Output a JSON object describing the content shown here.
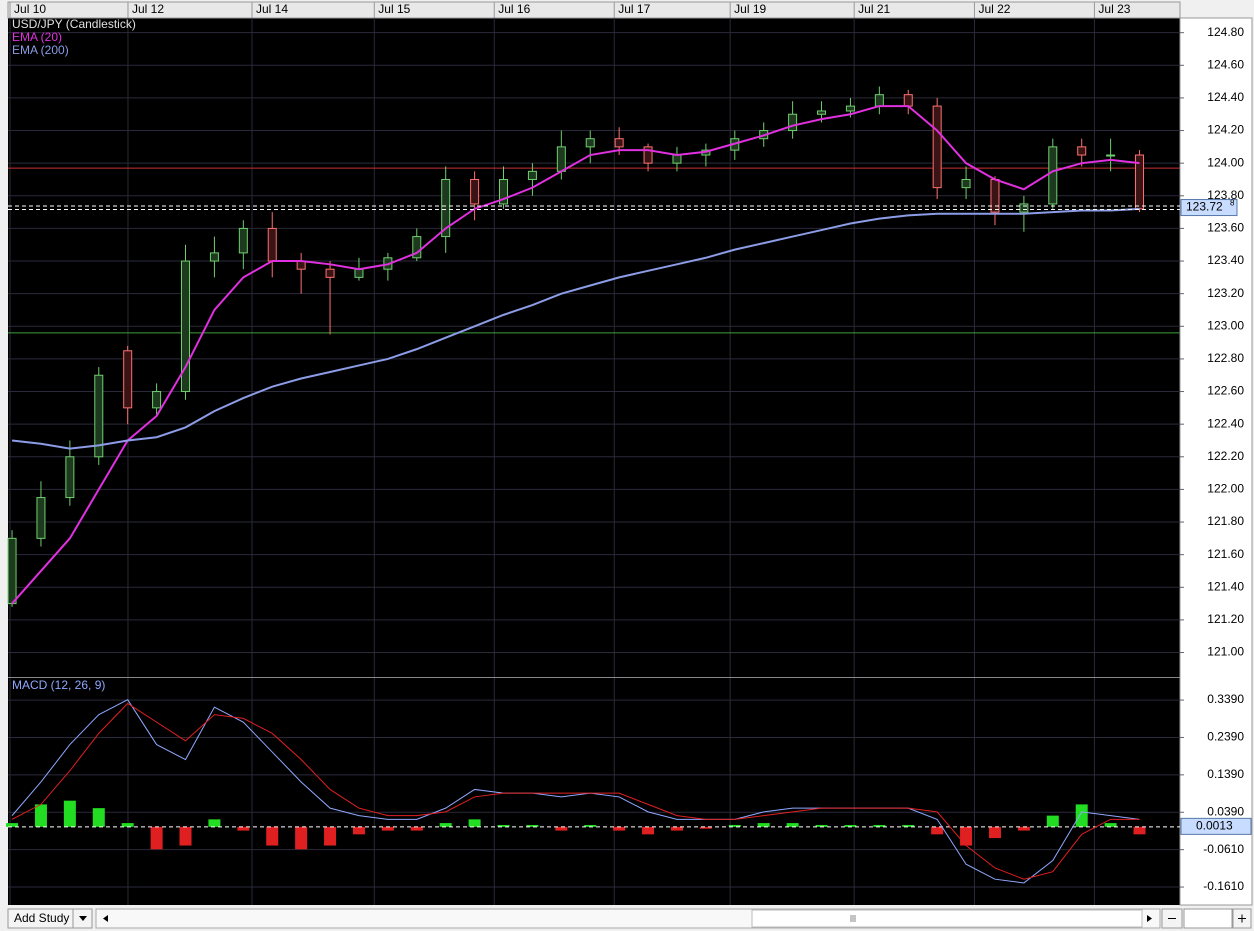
{
  "chart_data": [
    {
      "type": "candlestick",
      "title": "USD/JPY (Candlestick)",
      "xlim": [
        -0.14,
        40.4
      ],
      "xticks": [
        {
          "value": -0.07,
          "label": "Jul 10"
        },
        {
          "value": 4.01,
          "label": "Jul 12"
        },
        {
          "value": 8.3,
          "label": "Jul 14"
        },
        {
          "value": 12.53,
          "label": "Jul 15"
        },
        {
          "value": 16.68,
          "label": "Jul 16"
        },
        {
          "value": 20.83,
          "label": "Jul 17"
        },
        {
          "value": 24.84,
          "label": "Jul 19"
        },
        {
          "value": 29.13,
          "label": "Jul 21"
        },
        {
          "value": 33.29,
          "label": "Jul 22"
        },
        {
          "value": 37.44,
          "label": "Jul 23"
        }
      ],
      "ylim": [
        120.85,
        124.89
      ],
      "yticks": [
        {
          "value": 121.0,
          "label": "121.00"
        },
        {
          "value": 121.2,
          "label": "121.20"
        },
        {
          "value": 121.4,
          "label": "121.40"
        },
        {
          "value": 121.6,
          "label": "121.60"
        },
        {
          "value": 121.8,
          "label": "121.80"
        },
        {
          "value": 122.0,
          "label": "122.00"
        },
        {
          "value": 122.2,
          "label": "122.20"
        },
        {
          "value": 122.4,
          "label": "122.40"
        },
        {
          "value": 122.6,
          "label": "122.60"
        },
        {
          "value": 122.8,
          "label": "122.80"
        },
        {
          "value": 123.0,
          "label": "123.00"
        },
        {
          "value": 123.2,
          "label": "123.20"
        },
        {
          "value": 123.4,
          "label": "123.40"
        },
        {
          "value": 123.6,
          "label": "123.60"
        },
        {
          "value": 123.8,
          "label": "123.80"
        },
        {
          "value": 124.0,
          "label": "124.00"
        },
        {
          "value": 124.2,
          "label": "124.20"
        },
        {
          "value": 124.4,
          "label": "124.40"
        },
        {
          "value": 124.6,
          "label": "124.60"
        },
        {
          "value": 124.8,
          "label": "124.80"
        }
      ],
      "grid": true,
      "up_color": "#6fcf6f",
      "down_color": "#ff7070",
      "open": [
        121.3,
        121.7,
        121.95,
        122.2,
        122.85,
        122.5,
        122.6,
        123.4,
        123.45,
        123.6,
        123.4,
        123.35,
        123.3,
        123.35,
        123.42,
        123.55,
        123.9,
        123.75,
        123.9,
        123.95,
        124.1,
        124.15,
        124.1,
        124.0,
        124.05,
        124.08,
        124.15,
        124.2,
        124.3,
        124.32,
        124.35,
        124.42,
        124.35,
        123.85,
        123.9,
        123.7,
        123.75,
        124.1,
        124.05,
        124.05
      ],
      "high": [
        121.75,
        122.05,
        122.3,
        122.75,
        122.88,
        122.65,
        123.5,
        123.55,
        123.65,
        123.7,
        123.45,
        123.4,
        123.42,
        123.45,
        123.6,
        123.98,
        123.95,
        123.98,
        124.0,
        124.2,
        124.2,
        124.22,
        124.12,
        124.1,
        124.12,
        124.2,
        124.25,
        124.38,
        124.38,
        124.4,
        124.47,
        124.45,
        124.4,
        123.98,
        123.92,
        123.8,
        124.15,
        124.15,
        124.15,
        124.08
      ],
      "low": [
        121.28,
        121.65,
        121.9,
        122.15,
        122.4,
        122.45,
        122.55,
        123.3,
        123.35,
        123.3,
        123.2,
        122.95,
        123.28,
        123.28,
        123.4,
        123.45,
        123.65,
        123.72,
        123.8,
        123.9,
        124.0,
        124.05,
        123.95,
        123.95,
        123.98,
        124.02,
        124.1,
        124.15,
        124.25,
        124.28,
        124.3,
        124.3,
        123.78,
        123.78,
        123.62,
        123.58,
        123.72,
        123.98,
        123.95,
        123.7
      ],
      "close": [
        121.7,
        121.95,
        122.2,
        122.7,
        122.5,
        122.6,
        123.4,
        123.45,
        123.6,
        123.4,
        123.35,
        123.3,
        123.35,
        123.42,
        123.55,
        123.9,
        123.75,
        123.9,
        123.95,
        124.1,
        124.15,
        124.1,
        124.0,
        124.05,
        124.08,
        124.15,
        124.2,
        124.3,
        124.32,
        124.35,
        124.42,
        124.35,
        123.85,
        123.9,
        123.7,
        123.75,
        124.1,
        124.05,
        124.05,
        123.72
      ],
      "series": [
        {
          "name": "EMA (20)",
          "color": "#e030e0",
          "values": [
            121.3,
            121.5,
            121.7,
            122.0,
            122.3,
            122.45,
            122.75,
            123.1,
            123.3,
            123.4,
            123.4,
            123.38,
            123.35,
            123.38,
            123.45,
            123.6,
            123.72,
            123.78,
            123.85,
            123.95,
            124.05,
            124.08,
            124.08,
            124.05,
            124.07,
            124.12,
            124.17,
            124.23,
            124.27,
            124.3,
            124.35,
            124.35,
            124.2,
            124.0,
            123.9,
            123.84,
            123.95,
            124.0,
            124.02,
            124.0
          ]
        },
        {
          "name": "EMA (200)",
          "color": "#8c9ce6",
          "values": [
            122.3,
            122.28,
            122.25,
            122.27,
            122.3,
            122.32,
            122.38,
            122.48,
            122.56,
            122.63,
            122.68,
            122.72,
            122.76,
            122.8,
            122.86,
            122.93,
            123.0,
            123.07,
            123.13,
            123.2,
            123.25,
            123.3,
            123.34,
            123.38,
            123.42,
            123.47,
            123.51,
            123.55,
            123.59,
            123.63,
            123.66,
            123.68,
            123.69,
            123.69,
            123.69,
            123.69,
            123.7,
            123.71,
            123.71,
            123.72
          ]
        }
      ],
      "reference_lines": [
        {
          "value": 123.97,
          "color": "#c83232"
        },
        {
          "value": 122.96,
          "color": "#3ca03c"
        }
      ],
      "last_price": {
        "value": 123.728,
        "label": "123.72",
        "fraction": "8"
      }
    },
    {
      "type": "macd",
      "title": "MACD (12, 26, 9)",
      "xlim": [
        -0.14,
        40.4
      ],
      "ylim": [
        -0.209,
        0.398
      ],
      "yticks": [
        {
          "value": -0.161,
          "label": "-0.1610"
        },
        {
          "value": -0.061,
          "label": "-0.0610"
        },
        {
          "value": 0.039,
          "label": "0.0390"
        },
        {
          "value": 0.139,
          "label": "0.1390"
        },
        {
          "value": 0.239,
          "label": "0.2390"
        },
        {
          "value": 0.339,
          "label": "0.3390"
        }
      ],
      "grid": true,
      "series": [
        {
          "color": "#8fa8ff",
          "values": [
            0.03,
            0.12,
            0.22,
            0.3,
            0.34,
            0.22,
            0.18,
            0.32,
            0.28,
            0.2,
            0.12,
            0.05,
            0.03,
            0.02,
            0.02,
            0.05,
            0.1,
            0.09,
            0.09,
            0.08,
            0.09,
            0.08,
            0.04,
            0.02,
            0.02,
            0.02,
            0.04,
            0.05,
            0.05,
            0.05,
            0.05,
            0.05,
            0.02,
            -0.1,
            -0.14,
            -0.15,
            -0.09,
            0.04,
            0.03,
            0.02
          ]
        },
        {
          "color": "#e02020",
          "values": [
            0.02,
            0.06,
            0.15,
            0.25,
            0.33,
            0.28,
            0.23,
            0.3,
            0.29,
            0.25,
            0.18,
            0.1,
            0.05,
            0.03,
            0.03,
            0.04,
            0.08,
            0.09,
            0.09,
            0.09,
            0.09,
            0.09,
            0.06,
            0.03,
            0.02,
            0.02,
            0.03,
            0.04,
            0.05,
            0.05,
            0.05,
            0.05,
            0.04,
            -0.05,
            -0.11,
            -0.14,
            -0.12,
            -0.02,
            0.02,
            0.02
          ]
        }
      ],
      "histogram": {
        "up_color": "#22dd22",
        "down_color": "#e02020",
        "values": [
          0.01,
          0.06,
          0.07,
          0.05,
          0.01,
          -0.06,
          -0.05,
          0.02,
          -0.01,
          -0.05,
          -0.06,
          -0.05,
          -0.02,
          -0.01,
          -0.01,
          0.01,
          0.02,
          0.005,
          0.005,
          -0.01,
          0.005,
          -0.01,
          -0.02,
          -0.01,
          -0.005,
          0.005,
          0.01,
          0.01,
          0.005,
          0.005,
          0.005,
          0.005,
          -0.02,
          -0.05,
          -0.03,
          -0.01,
          0.03,
          0.06,
          0.01,
          -0.02
        ]
      },
      "last_value": {
        "value": 0.0013,
        "label": "0.0013"
      }
    }
  ],
  "toolbar": {
    "add_study": "Add Study"
  }
}
